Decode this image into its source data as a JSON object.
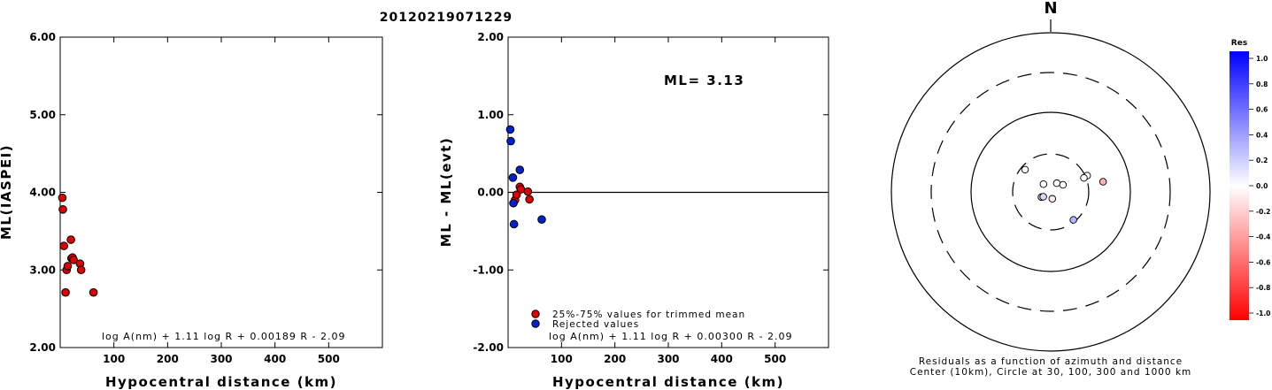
{
  "title": "20120219071229",
  "chart_data": [
    {
      "type": "scatter",
      "panel": "ml-vs-distance",
      "xlabel": "Hypocentral distance (km)",
      "ylabel": "ML(IASPEI)",
      "xlim": [
        0,
        600
      ],
      "ylim": [
        2.0,
        6.0
      ],
      "xticks": [
        100,
        200,
        300,
        400,
        500
      ],
      "yticks": [
        "2.00",
        "3.00",
        "4.00",
        "5.00",
        "6.00"
      ],
      "formula": "log A(nm) + 1.11 log R + 0.00189 R - 2.09",
      "points": [
        {
          "x": 4,
          "y": 3.93
        },
        {
          "x": 5,
          "y": 3.78
        },
        {
          "x": 7,
          "y": 3.31
        },
        {
          "x": 10,
          "y": 2.71
        },
        {
          "x": 12,
          "y": 3.0
        },
        {
          "x": 14,
          "y": 3.05
        },
        {
          "x": 20,
          "y": 3.39
        },
        {
          "x": 21,
          "y": 3.15
        },
        {
          "x": 23,
          "y": 3.16
        },
        {
          "x": 25,
          "y": 3.13
        },
        {
          "x": 37,
          "y": 3.08
        },
        {
          "x": 39,
          "y": 3.0
        },
        {
          "x": 62,
          "y": 2.71
        }
      ],
      "point_color": "#dd0000"
    },
    {
      "type": "scatter",
      "panel": "residual-vs-distance",
      "xlabel": "Hypocentral distance (km)",
      "ylabel": "ML - ML(evt)",
      "xlim": [
        0,
        600
      ],
      "ylim": [
        -2.0,
        2.0
      ],
      "xticks": [
        100,
        200,
        300,
        400,
        500
      ],
      "yticks": [
        "-2.00",
        "-1.00",
        "0.00",
        "1.00",
        "2.00"
      ],
      "annotation": "ML= 3.13",
      "formula": "log A(nm) + 1.11 log R + 0.00300 R - 2.09",
      "legend": [
        {
          "label": "25%-75% values for trimmed mean",
          "color": "#dd0000"
        },
        {
          "label": "Rejected values",
          "color": "#0022cc"
        }
      ],
      "zero_line": 0,
      "series": [
        {
          "name": "25%-75% values for trimmed mean",
          "color": "#dd0000",
          "points": [
            {
              "x": 13,
              "y": -0.1
            },
            {
              "x": 16,
              "y": -0.03
            },
            {
              "x": 22,
              "y": 0.07
            },
            {
              "x": 24,
              "y": 0.04
            },
            {
              "x": 37,
              "y": 0.01
            },
            {
              "x": 40,
              "y": -0.09
            }
          ]
        },
        {
          "name": "Rejected values",
          "color": "#0022cc",
          "points": [
            {
              "x": 4,
              "y": 0.81
            },
            {
              "x": 5,
              "y": 0.66
            },
            {
              "x": 9,
              "y": 0.19
            },
            {
              "x": 10,
              "y": -0.14
            },
            {
              "x": 11,
              "y": -0.41
            },
            {
              "x": 22,
              "y": 0.29
            },
            {
              "x": 63,
              "y": -0.35
            }
          ]
        }
      ]
    },
    {
      "type": "polar-scatter",
      "panel": "azimuth-residuals",
      "north_label": "N",
      "caption_line1": "Residuals as a function of azimuth and distance",
      "caption_line2": "Center (10km), Circle at 30, 100, 300 and 1000 km",
      "rings": [
        {
          "km": 30,
          "style": "dashed"
        },
        {
          "km": 100,
          "style": "solid"
        },
        {
          "km": 300,
          "style": "dashed"
        },
        {
          "km": 1000,
          "style": "solid"
        }
      ],
      "points": [
        {
          "az": 311,
          "dist_km": 16,
          "res": 0.0
        },
        {
          "az": 317,
          "dist_km": 6,
          "res": 0.0
        },
        {
          "az": 35,
          "dist_km": 6,
          "res": 0.0
        },
        {
          "az": 60,
          "dist_km": 8,
          "res": 0.0
        },
        {
          "az": 66,
          "dist_km": 19,
          "res": 0.0
        },
        {
          "az": 67,
          "dist_km": 17,
          "res": 0.0
        },
        {
          "az": 79,
          "dist_km": 28,
          "res": -0.3
        },
        {
          "az": 241,
          "dist_km": 6,
          "res": -0.25
        },
        {
          "az": 237,
          "dist_km": 5,
          "res": 0.15
        },
        {
          "az": 167,
          "dist_km": 4,
          "res": -0.1
        },
        {
          "az": 141,
          "dist_km": 17,
          "res": 0.3
        }
      ],
      "colorbar": {
        "title": "Res",
        "ticks": [
          "1.0",
          "0.8",
          "0.6",
          "0.4",
          "0.2",
          "0.0",
          "-0.2",
          "-0.4",
          "-0.6",
          "-0.8",
          "-1.0"
        ],
        "max_color": "#0000ff",
        "mid_color": "#ffffff",
        "min_color": "#ff0000"
      }
    }
  ]
}
